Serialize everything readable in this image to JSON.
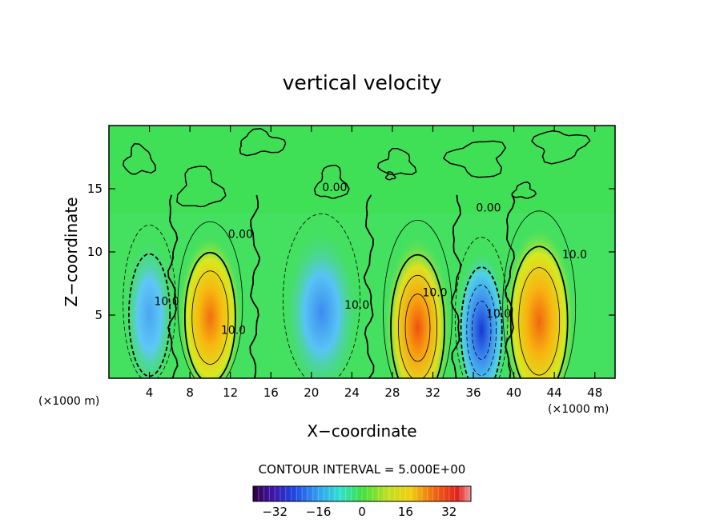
{
  "chart_data": {
    "type": "heatmap",
    "title": "vertical velocity",
    "xlabel": "X−coordinate",
    "ylabel": "Z−coordinate",
    "x_unit_left": "(×1000 m)",
    "x_unit_right": "(×1000 m)",
    "xlim": [
      0,
      50
    ],
    "ylim": [
      0,
      20
    ],
    "xticks": [
      4,
      8,
      12,
      16,
      20,
      24,
      28,
      32,
      36,
      40,
      44,
      48
    ],
    "yticks": [
      5,
      10,
      15
    ],
    "contour_interval_text": "CONTOUR INTERVAL = 5.000E+00",
    "contour_labels": [
      {
        "text": "0.00",
        "x": 13.0,
        "y": 11.1
      },
      {
        "text": "0.00",
        "x": 22.3,
        "y": 14.8
      },
      {
        "text": "0.00",
        "x": 37.5,
        "y": 13.2
      },
      {
        "text": "10.0",
        "x": 5.7,
        "y": 5.8
      },
      {
        "text": "10.0",
        "x": 12.3,
        "y": 3.5
      },
      {
        "text": "10.0",
        "x": 24.5,
        "y": 5.5
      },
      {
        "text": "10.0",
        "x": 32.2,
        "y": 6.5
      },
      {
        "text": "10.0",
        "x": 38.5,
        "y": 4.8
      },
      {
        "text": "10.0",
        "x": 46.0,
        "y": 9.5
      }
    ],
    "cells": [
      {
        "x": 4.0,
        "y": 5.0,
        "value": -15
      },
      {
        "x": 10.0,
        "y": 4.8,
        "value": 24
      },
      {
        "x": 21.0,
        "y": 5.2,
        "value": -14
      },
      {
        "x": 30.5,
        "y": 4.0,
        "value": 26
      },
      {
        "x": 36.8,
        "y": 3.8,
        "value": -26
      },
      {
        "x": 42.5,
        "y": 4.5,
        "value": 22
      }
    ],
    "colorbar": {
      "ticks": [
        -32,
        -16,
        0,
        16,
        32
      ],
      "range": [
        -40,
        40
      ]
    }
  }
}
